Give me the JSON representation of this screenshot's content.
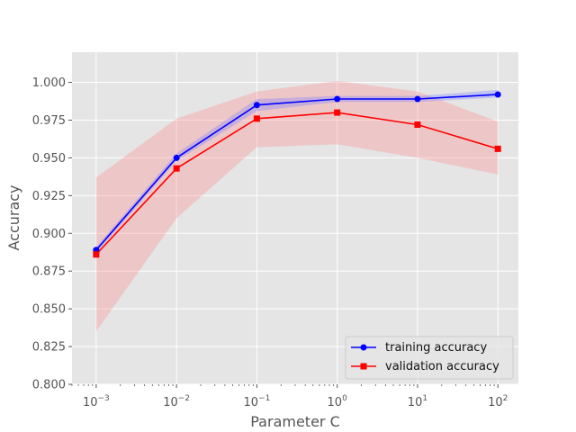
{
  "chart_data": {
    "type": "line",
    "title": "",
    "xlabel": "Parameter C",
    "ylabel": "Accuracy",
    "xscale": "log",
    "x": [
      0.001,
      0.01,
      0.1,
      1,
      10,
      100
    ],
    "xlim": [
      0.0005,
      180
    ],
    "ylim": [
      0.8,
      1.02
    ],
    "xtick_labels": [
      {
        "base": "10",
        "exp": "−3",
        "value": 0.001
      },
      {
        "base": "10",
        "exp": "−2",
        "value": 0.01
      },
      {
        "base": "10",
        "exp": "−1",
        "value": 0.1
      },
      {
        "base": "10",
        "exp": "0",
        "value": 1
      },
      {
        "base": "10",
        "exp": "1",
        "value": 10
      },
      {
        "base": "10",
        "exp": "2",
        "value": 100
      }
    ],
    "ytick_labels": [
      "0.800",
      "0.825",
      "0.850",
      "0.875",
      "0.900",
      "0.925",
      "0.950",
      "0.975",
      "1.000"
    ],
    "yticks": [
      0.8,
      0.825,
      0.85,
      0.875,
      0.9,
      0.925,
      0.95,
      0.975,
      1.0
    ],
    "grid": true,
    "legend_position": "lower-right",
    "series": [
      {
        "name": "training accuracy",
        "color": "#0000ff",
        "marker": "circle",
        "values": [
          0.889,
          0.95,
          0.985,
          0.989,
          0.989,
          0.992
        ],
        "lower": [
          0.887,
          0.948,
          0.981,
          0.987,
          0.987,
          0.99
        ],
        "upper": [
          0.891,
          0.953,
          0.989,
          0.991,
          0.991,
          0.995
        ]
      },
      {
        "name": "validation accuracy",
        "color": "#ff0000",
        "marker": "square",
        "values": [
          0.886,
          0.943,
          0.976,
          0.98,
          0.972,
          0.956
        ],
        "lower": [
          0.835,
          0.91,
          0.957,
          0.959,
          0.95,
          0.939
        ],
        "upper": [
          0.937,
          0.976,
          0.994,
          1.001,
          0.994,
          0.974
        ]
      }
    ]
  },
  "colors": {
    "plot_background": "#e5e5e5",
    "grid": "#ffffff",
    "training_band": "#8080ff",
    "validation_band": "#ff8080"
  }
}
